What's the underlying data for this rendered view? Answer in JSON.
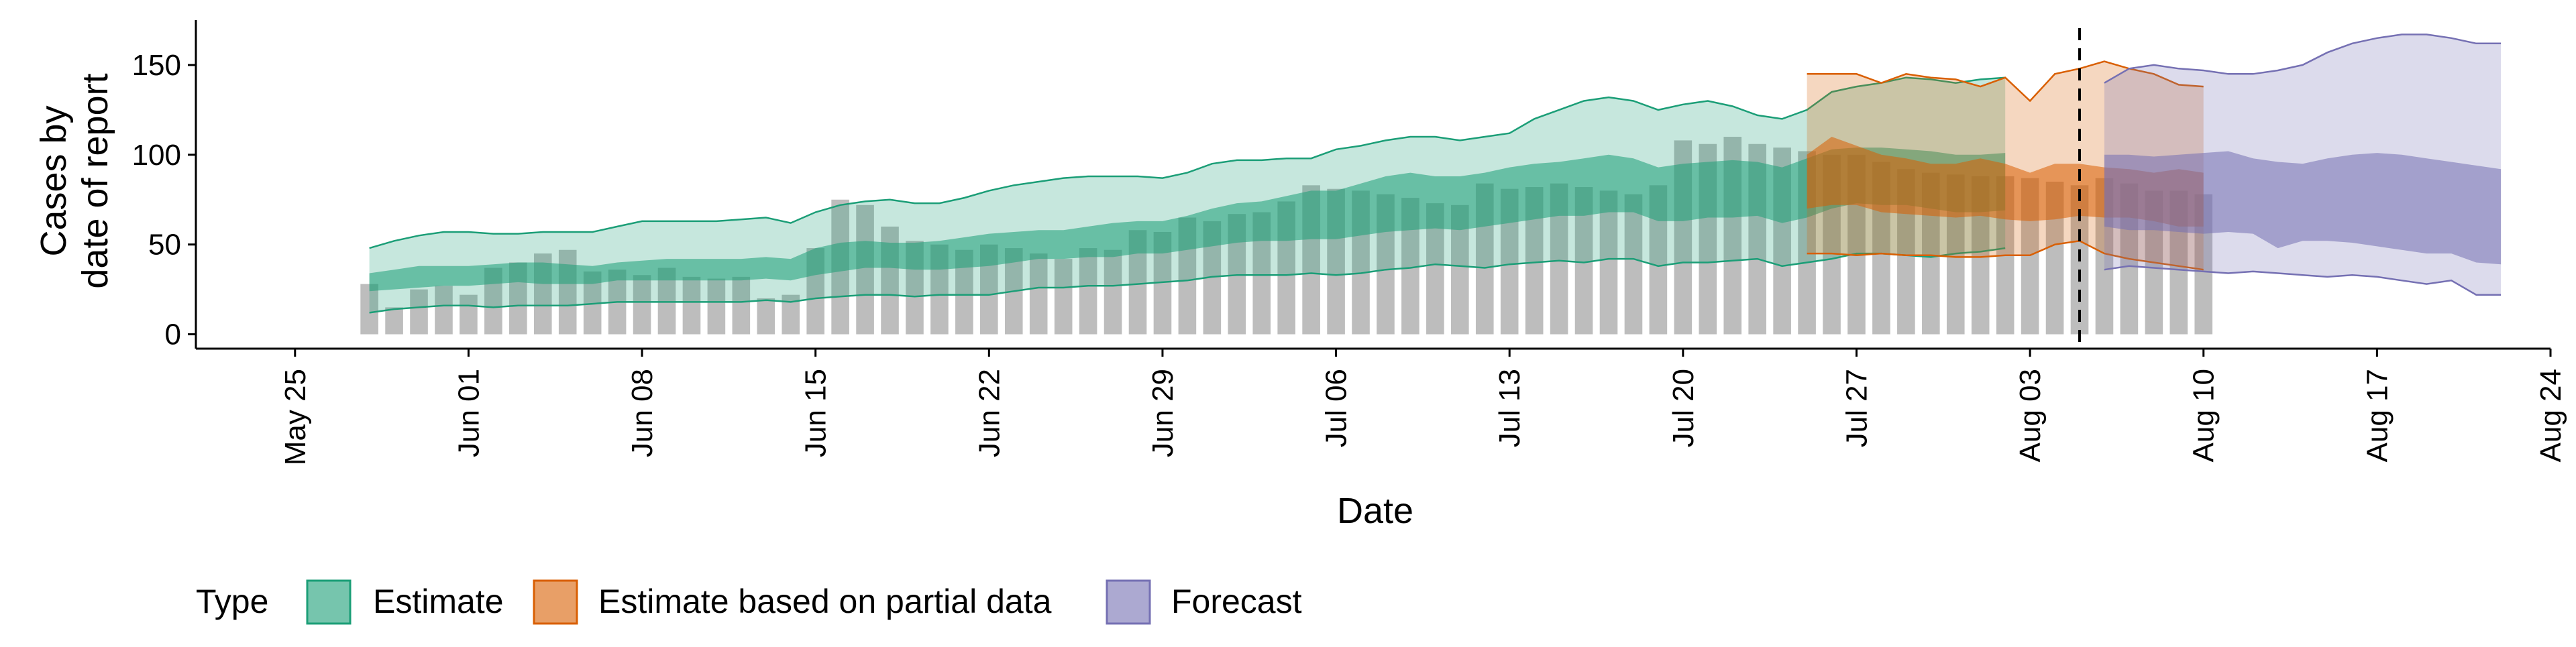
{
  "chart_data": {
    "type": "bar",
    "xlabel": "Date",
    "ylabel_lines": [
      "Cases by",
      "date of report"
    ],
    "ylim": [
      -8,
      175
    ],
    "yticks": [
      0,
      50,
      100,
      150
    ],
    "xlim": [
      "2020-05-21",
      "2020-08-24"
    ],
    "xticks": [
      {
        "date": "2020-05-25",
        "label": "May 25"
      },
      {
        "date": "2020-06-01",
        "label": "Jun 01"
      },
      {
        "date": "2020-06-08",
        "label": "Jun 08"
      },
      {
        "date": "2020-06-15",
        "label": "Jun 15"
      },
      {
        "date": "2020-06-22",
        "label": "Jun 22"
      },
      {
        "date": "2020-06-29",
        "label": "Jun 29"
      },
      {
        "date": "2020-07-06",
        "label": "Jul 06"
      },
      {
        "date": "2020-07-13",
        "label": "Jul 13"
      },
      {
        "date": "2020-07-20",
        "label": "Jul 20"
      },
      {
        "date": "2020-07-27",
        "label": "Jul 27"
      },
      {
        "date": "2020-08-03",
        "label": "Aug 03"
      },
      {
        "date": "2020-08-10",
        "label": "Aug 10"
      },
      {
        "date": "2020-08-17",
        "label": "Aug 17"
      },
      {
        "date": "2020-08-24",
        "label": "Aug 24"
      }
    ],
    "forecast_start_line": "2020-08-05",
    "bars": {
      "start_date": "2020-05-28",
      "color": "#bdbdbd",
      "values": [
        28,
        15,
        25,
        27,
        22,
        37,
        40,
        45,
        47,
        35,
        36,
        33,
        37,
        32,
        31,
        32,
        20,
        22,
        48,
        75,
        72,
        60,
        52,
        50,
        47,
        50,
        48,
        45,
        42,
        48,
        47,
        58,
        57,
        65,
        63,
        67,
        68,
        74,
        83,
        81,
        80,
        78,
        76,
        73,
        72,
        84,
        81,
        82,
        84,
        82,
        80,
        78,
        83,
        108,
        106,
        110,
        106,
        104,
        102,
        100,
        100,
        96,
        92,
        90,
        89,
        88,
        88,
        87,
        85,
        83,
        87,
        84,
        80,
        80,
        78
      ]
    },
    "bands": [
      {
        "name": "Estimate",
        "color": "#1b9e77",
        "start_date": "2020-05-28",
        "outer_upper": [
          48,
          52,
          55,
          57,
          57,
          56,
          56,
          57,
          57,
          57,
          60,
          63,
          63,
          63,
          63,
          64,
          65,
          62,
          68,
          72,
          74,
          75,
          73,
          73,
          76,
          80,
          83,
          85,
          87,
          88,
          88,
          88,
          87,
          90,
          95,
          97,
          97,
          98,
          98,
          103,
          105,
          108,
          110,
          110,
          108,
          110,
          112,
          120,
          125,
          130,
          132,
          130,
          125,
          128,
          130,
          127,
          122,
          120,
          125,
          135,
          138,
          140,
          143,
          142,
          140,
          142,
          143
        ],
        "inner_upper": [
          34,
          36,
          38,
          38,
          38,
          39,
          40,
          40,
          39,
          38,
          40,
          41,
          42,
          42,
          42,
          42,
          43,
          42,
          48,
          51,
          52,
          51,
          51,
          52,
          54,
          56,
          57,
          58,
          58,
          60,
          62,
          63,
          63,
          66,
          70,
          73,
          74,
          77,
          80,
          80,
          84,
          88,
          90,
          88,
          88,
          90,
          93,
          95,
          96,
          98,
          100,
          98,
          93,
          95,
          96,
          97,
          96,
          93,
          98,
          103,
          104,
          104,
          103,
          102,
          100,
          100,
          101
        ],
        "inner_lower": [
          24,
          25,
          26,
          27,
          27,
          28,
          29,
          28,
          28,
          28,
          30,
          30,
          30,
          30,
          30,
          30,
          31,
          30,
          33,
          35,
          37,
          37,
          36,
          36,
          37,
          38,
          40,
          42,
          42,
          43,
          43,
          45,
          45,
          47,
          49,
          51,
          52,
          52,
          53,
          53,
          55,
          57,
          58,
          59,
          58,
          60,
          62,
          64,
          66,
          66,
          68,
          68,
          63,
          63,
          65,
          65,
          66,
          62,
          65,
          70,
          73,
          72,
          72,
          70,
          68,
          68,
          69
        ],
        "outer_lower": [
          12,
          14,
          15,
          16,
          16,
          15,
          16,
          16,
          16,
          17,
          18,
          18,
          18,
          18,
          18,
          18,
          19,
          18,
          20,
          21,
          22,
          22,
          21,
          22,
          22,
          22,
          24,
          26,
          26,
          27,
          27,
          28,
          29,
          30,
          32,
          33,
          33,
          33,
          34,
          33,
          34,
          36,
          37,
          39,
          38,
          37,
          39,
          40,
          41,
          40,
          42,
          42,
          38,
          40,
          40,
          41,
          42,
          38,
          40,
          42,
          45,
          45,
          44,
          43,
          45,
          46,
          48
        ]
      },
      {
        "name": "Estimate based on partial data",
        "color": "#d95f02",
        "start_date": "2020-07-25",
        "outer_upper": [
          145,
          145,
          145,
          140,
          145,
          143,
          142,
          138,
          143,
          130,
          145,
          148,
          152,
          148,
          145,
          139,
          138
        ],
        "inner_upper": [
          100,
          110,
          105,
          100,
          98,
          95,
          95,
          98,
          95,
          90,
          95,
          95,
          93,
          92,
          90,
          92,
          90
        ],
        "inner_lower": [
          70,
          72,
          72,
          68,
          67,
          66,
          65,
          66,
          64,
          63,
          64,
          66,
          65,
          65,
          63,
          60,
          60
        ],
        "outer_lower": [
          45,
          45,
          44,
          45,
          44,
          44,
          43,
          43,
          44,
          44,
          50,
          52,
          45,
          42,
          40,
          38,
          36
        ]
      },
      {
        "name": "Forecast",
        "color": "#7570b3",
        "start_date": "2020-08-06",
        "outer_upper": [
          140,
          148,
          150,
          148,
          147,
          145,
          145,
          147,
          150,
          157,
          162,
          165,
          167,
          167,
          165,
          162,
          162
        ],
        "inner_upper": [
          100,
          100,
          99,
          100,
          101,
          102,
          98,
          96,
          95,
          98,
          100,
          101,
          100,
          98,
          96,
          94,
          92
        ],
        "inner_lower": [
          60,
          58,
          58,
          57,
          56,
          57,
          56,
          48,
          52,
          52,
          51,
          49,
          47,
          45,
          45,
          40,
          39
        ],
        "outer_lower": [
          36,
          38,
          37,
          36,
          35,
          34,
          35,
          34,
          33,
          32,
          33,
          32,
          30,
          28,
          30,
          22,
          22
        ]
      }
    ],
    "legend": {
      "title": "Type",
      "position": "bottom",
      "items": [
        {
          "label": "Estimate",
          "color": "#1b9e77"
        },
        {
          "label": "Estimate based on partial data",
          "color": "#d95f02"
        },
        {
          "label": "Forecast",
          "color": "#7570b3"
        }
      ]
    }
  }
}
